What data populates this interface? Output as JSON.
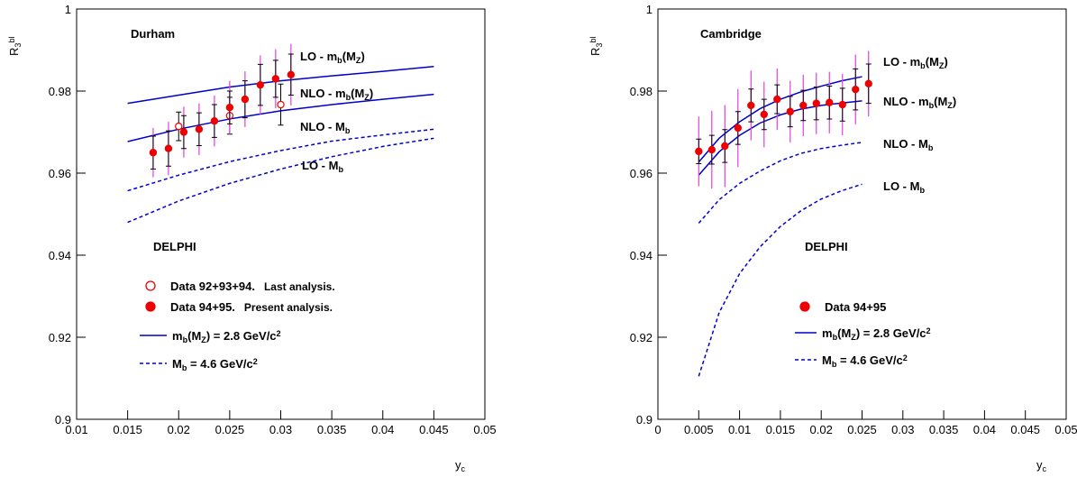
{
  "chart_data": [
    {
      "type": "line",
      "title": "Durham",
      "experiment": "DELPHI",
      "ylabel": [
        "R",
        {
          "sub": "3"
        },
        {
          "sup": "bl"
        }
      ],
      "xlabel": [
        "y",
        {
          "sub": "c"
        }
      ],
      "xlim": [
        0.01,
        0.05
      ],
      "xticks": [
        0.01,
        0.015,
        0.02,
        0.025,
        0.03,
        0.035,
        0.04,
        0.045,
        0.05
      ],
      "ylim": [
        0.9,
        1
      ],
      "yticks": [
        0.9,
        0.92,
        0.94,
        0.96,
        0.98,
        1
      ],
      "series": [
        {
          "name": [
            "LO - m",
            {
              "sub": "b"
            },
            "(M",
            {
              "sub": "Z"
            },
            ")"
          ],
          "color": "#0000cc",
          "dashed": false,
          "x": [
            0.015,
            0.02,
            0.025,
            0.03,
            0.035,
            0.04,
            0.045
          ],
          "values": [
            0.977,
            0.979,
            0.981,
            0.9825,
            0.9837,
            0.9848,
            0.986
          ]
        },
        {
          "name": [
            "NLO - m",
            {
              "sub": "b"
            },
            "(M",
            {
              "sub": "Z"
            },
            ")"
          ],
          "color": "#0000cc",
          "dashed": false,
          "x": [
            0.015,
            0.02,
            0.025,
            0.03,
            0.035,
            0.04,
            0.045
          ],
          "values": [
            0.9677,
            0.9707,
            0.9732,
            0.9752,
            0.9767,
            0.978,
            0.9792
          ]
        },
        {
          "name": [
            "NLO - M",
            {
              "sub": "b"
            }
          ],
          "color": "#0000cc",
          "dashed": true,
          "x": [
            0.015,
            0.02,
            0.025,
            0.03,
            0.035,
            0.04,
            0.045
          ],
          "values": [
            0.9557,
            0.9595,
            0.9628,
            0.9655,
            0.9678,
            0.9693,
            0.9707
          ]
        },
        {
          "name": [
            "LO - M",
            {
              "sub": "b"
            }
          ],
          "color": "#0000cc",
          "dashed": true,
          "x": [
            0.015,
            0.02,
            0.025,
            0.03,
            0.035,
            0.04,
            0.045
          ],
          "values": [
            0.948,
            0.9532,
            0.9575,
            0.961,
            0.964,
            0.9665,
            0.9685
          ]
        }
      ],
      "points": [
        {
          "name": "Data 92+93+94.",
          "note": "Last analysis.",
          "color": "#ee0000",
          "filled": false,
          "x": [
            0.02,
            0.025,
            0.03
          ],
          "values": [
            0.9714,
            0.974,
            0.9767
          ],
          "errors": [
            0.0035,
            0.0045,
            0.005
          ]
        },
        {
          "name": "Data 94+95.",
          "note": "Present analysis.",
          "color": "#ee0000",
          "filled": true,
          "x": [
            0.0175,
            0.019,
            0.0205,
            0.022,
            0.0235,
            0.025,
            0.0265,
            0.028,
            0.0295,
            0.031
          ],
          "values": [
            0.965,
            0.966,
            0.97,
            0.9707,
            0.9727,
            0.976,
            0.978,
            0.9815,
            0.983,
            0.984
          ],
          "errors": [
            0.004,
            0.0043,
            0.004,
            0.004,
            0.004,
            0.004,
            0.0045,
            0.005,
            0.0045,
            0.005
          ],
          "errors_total": [
            0.006,
            0.0065,
            0.0062,
            0.0063,
            0.0062,
            0.0065,
            0.0068,
            0.0072,
            0.0072,
            0.0075
          ],
          "errors_total_color": "#e040e0"
        }
      ],
      "line_legend": [
        {
          "name": [
            "m",
            {
              "sub": "b"
            },
            "(M",
            {
              "sub": "Z"
            },
            ") = 2.8 GeV/c",
            {
              "sup": "2"
            }
          ],
          "dashed": false,
          "color": "#0000cc"
        },
        {
          "name": [
            "M",
            {
              "sub": "b"
            },
            " = 4.6 GeV/c",
            {
              "sup": "2"
            }
          ],
          "dashed": true,
          "color": "#0000cc"
        }
      ]
    },
    {
      "type": "line",
      "title": "Cambridge",
      "experiment": "DELPHI",
      "ylabel": [
        "R",
        {
          "sub": "3"
        },
        {
          "sup": "bl"
        }
      ],
      "xlabel": [
        "y",
        {
          "sub": "c"
        }
      ],
      "xlim": [
        0,
        0.05
      ],
      "xticks": [
        0,
        0.005,
        0.01,
        0.015,
        0.02,
        0.025,
        0.03,
        0.035,
        0.04,
        0.045,
        0.05
      ],
      "ylim": [
        0.9,
        1
      ],
      "yticks": [
        0.9,
        0.92,
        0.94,
        0.96,
        0.98,
        1
      ],
      "series": [
        {
          "name": [
            "LO - m",
            {
              "sub": "b"
            },
            "(M",
            {
              "sub": "Z"
            },
            ")"
          ],
          "color": "#0000cc",
          "dashed": false,
          "x": [
            0.005,
            0.0075,
            0.01,
            0.0125,
            0.015,
            0.0175,
            0.02,
            0.0225,
            0.025
          ],
          "values": [
            0.9627,
            0.9685,
            0.9725,
            0.9757,
            0.978,
            0.9798,
            0.9812,
            0.9825,
            0.9835
          ]
        },
        {
          "name": [
            "NLO - m",
            {
              "sub": "b"
            },
            "(M",
            {
              "sub": "Z"
            },
            ")"
          ],
          "color": "#0000cc",
          "dashed": false,
          "x": [
            0.005,
            0.0075,
            0.01,
            0.0125,
            0.015,
            0.0175,
            0.02,
            0.0225,
            0.025
          ],
          "values": [
            0.9595,
            0.9652,
            0.9692,
            0.9722,
            0.9742,
            0.9756,
            0.9765,
            0.9771,
            0.9776
          ]
        },
        {
          "name": [
            "NLO - M",
            {
              "sub": "b"
            }
          ],
          "color": "#0000cc",
          "dashed": true,
          "x": [
            0.005,
            0.0075,
            0.01,
            0.0125,
            0.015,
            0.0175,
            0.02,
            0.0225,
            0.025
          ],
          "values": [
            0.9478,
            0.9535,
            0.9575,
            0.9605,
            0.963,
            0.9648,
            0.966,
            0.9668,
            0.9675
          ]
        },
        {
          "name": [
            "LO - M",
            {
              "sub": "b"
            }
          ],
          "color": "#0000cc",
          "dashed": true,
          "x": [
            0.005,
            0.0075,
            0.01,
            0.0125,
            0.015,
            0.0175,
            0.02,
            0.0225,
            0.025
          ],
          "values": [
            0.9105,
            0.926,
            0.9355,
            0.942,
            0.947,
            0.9508,
            0.9537,
            0.9557,
            0.9573
          ]
        }
      ],
      "points": [
        {
          "name": "Data 94+95",
          "color": "#ee0000",
          "filled": true,
          "x": [
            0.005,
            0.0066,
            0.0082,
            0.0098,
            0.0114,
            0.013,
            0.0146,
            0.0162,
            0.0178,
            0.0194,
            0.021,
            0.0226,
            0.0242,
            0.0258
          ],
          "values": [
            0.9653,
            0.9657,
            0.9666,
            0.971,
            0.9765,
            0.9743,
            0.978,
            0.975,
            0.9765,
            0.977,
            0.9772,
            0.9767,
            0.9804,
            0.9818
          ],
          "errors": [
            0.003,
            0.0035,
            0.004,
            0.004,
            0.004,
            0.0037,
            0.0035,
            0.0037,
            0.0037,
            0.004,
            0.004,
            0.004,
            0.005,
            0.0048
          ],
          "errors_total": [
            0.0085,
            0.0095,
            0.01,
            0.0095,
            0.0085,
            0.008,
            0.0075,
            0.0075,
            0.0075,
            0.0075,
            0.0075,
            0.0075,
            0.0085,
            0.008
          ],
          "errors_total_color": "#e040e0"
        }
      ],
      "line_legend": [
        {
          "name": [
            "m",
            {
              "sub": "b"
            },
            "(M",
            {
              "sub": "Z"
            },
            ") = 2.8 GeV/c",
            {
              "sup": "2"
            }
          ],
          "dashed": false,
          "color": "#0000cc"
        },
        {
          "name": [
            "M",
            {
              "sub": "b"
            },
            " = 4.6 GeV/c",
            {
              "sup": "2"
            }
          ],
          "dashed": true,
          "color": "#0000cc"
        }
      ]
    }
  ]
}
